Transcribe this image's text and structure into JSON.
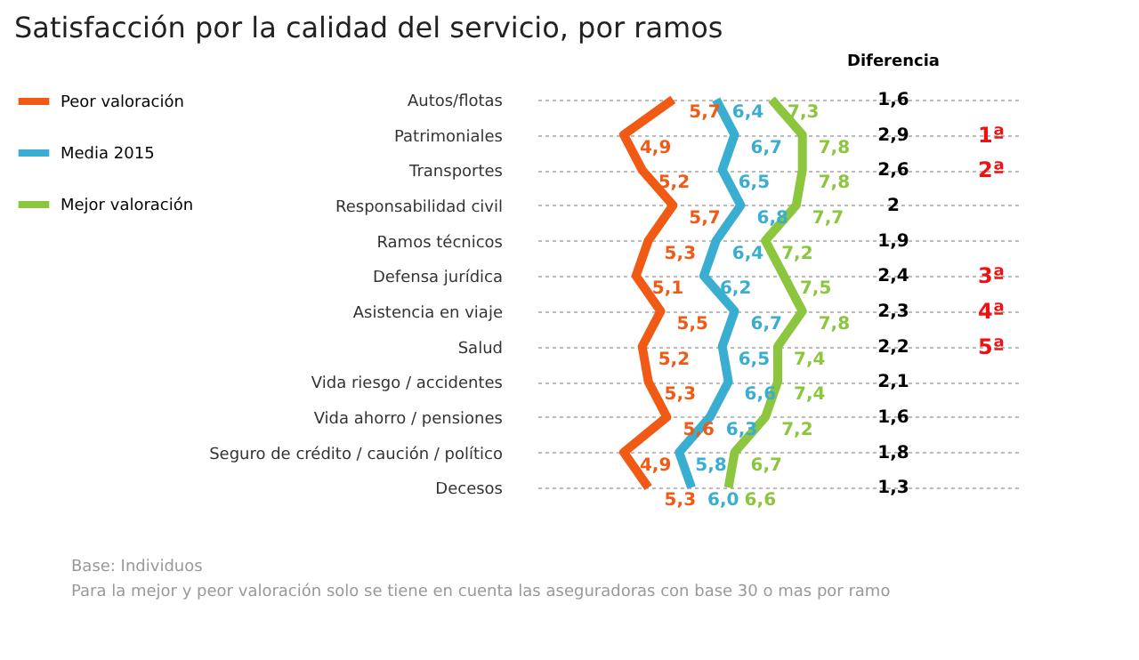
{
  "chart_data": {
    "type": "line",
    "orientation": "horizontal",
    "title": "Satisfacción por la calidad del servicio, por ramos",
    "categories": [
      "Autos/flotas",
      "Patrimoniales",
      "Transportes",
      "Responsabilidad civil",
      "Ramos técnicos",
      "Defensa jurídica",
      "Asistencia en viaje",
      "Salud",
      "Vida riesgo / accidentes",
      "Vida ahorro / pensiones",
      "Seguro de crédito / caución / político",
      "Decesos"
    ],
    "series": [
      {
        "name": "Peor valoración",
        "color": "#f05a14",
        "values": [
          5.7,
          4.9,
          5.2,
          5.7,
          5.3,
          5.1,
          5.5,
          5.2,
          5.3,
          5.6,
          4.9,
          5.3
        ],
        "value_labels": [
          "5,7",
          "4,9",
          "5,2",
          "5,7",
          "5,3",
          "5,1",
          "5,5",
          "5,2",
          "5,3",
          "5,6",
          "4,9",
          "5,3"
        ]
      },
      {
        "name": "Media 2015",
        "color": "#3aaed0",
        "values": [
          6.4,
          6.7,
          6.5,
          6.8,
          6.4,
          6.2,
          6.7,
          6.5,
          6.6,
          6.3,
          5.8,
          6.0
        ],
        "value_labels": [
          "6,4",
          "6,7",
          "6,5",
          "6,8",
          "6,4",
          "6,2",
          "6,7",
          "6,5",
          "6,6",
          "6,3",
          "5,8",
          "6,0"
        ]
      },
      {
        "name": "Mejor valoración",
        "color": "#8cc63e",
        "values": [
          7.3,
          7.8,
          7.8,
          7.7,
          7.2,
          7.5,
          7.8,
          7.4,
          7.4,
          7.2,
          6.7,
          6.6
        ],
        "value_labels": [
          "7,3",
          "7,8",
          "7,8",
          "7,7",
          "7,2",
          "7,5",
          "7,8",
          "7,4",
          "7,4",
          "7,2",
          "6,7",
          "6,6"
        ]
      }
    ],
    "xlim": [
      3.5,
      11.3
    ],
    "tick_labels": "y",
    "grid": "y",
    "legend": "left",
    "line_style": "solid",
    "marker": "none",
    "annotations": [
      "Diferencia",
      "1,6",
      "2,9",
      "2,6",
      "2",
      "1,9",
      "2,4",
      "2,3",
      "2,2",
      "2,1",
      "1,6",
      "1,8",
      "1,3",
      "1ª",
      "2ª",
      "3ª",
      "4ª",
      "5ª",
      "Base: Individuos",
      "Para la mejor y peor valoración solo se tiene en cuenta las aseguradoras con base 30 o mas por ramo"
    ]
  }
}
